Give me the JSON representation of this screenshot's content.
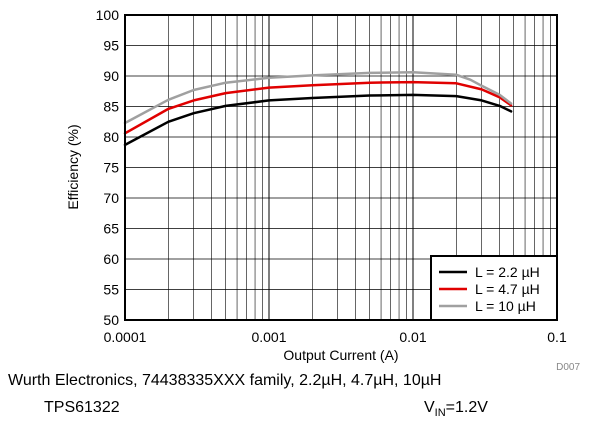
{
  "chart_data": {
    "type": "line",
    "xlabel": "Output Current (A)",
    "ylabel": "Efficiency (%)",
    "xscale": "log",
    "xlim": [
      0.0001,
      0.1
    ],
    "ylim": [
      50,
      100
    ],
    "grid": true,
    "legend_position": "bottom-right",
    "x_tick_labels": [
      "0.0001",
      "0.001",
      "0.01",
      "0.1"
    ],
    "y_tick_labels": [
      "50",
      "55",
      "60",
      "65",
      "70",
      "75",
      "80",
      "85",
      "90",
      "95",
      "100"
    ],
    "figure_id": "D007",
    "series": [
      {
        "name": "L = 2.2 µH",
        "color": "#000000",
        "x": [
          0.0001,
          0.0002,
          0.0003,
          0.0005,
          0.001,
          0.002,
          0.005,
          0.01,
          0.02,
          0.03,
          0.04,
          0.048
        ],
        "y": [
          78.7,
          82.5,
          83.9,
          85.1,
          86.0,
          86.4,
          86.8,
          86.9,
          86.7,
          86.0,
          85.1,
          84.2
        ]
      },
      {
        "name": "L = 4.7 µH",
        "color": "#e00000",
        "x": [
          0.0001,
          0.0002,
          0.0003,
          0.0005,
          0.001,
          0.002,
          0.005,
          0.01,
          0.02,
          0.03,
          0.04,
          0.048
        ],
        "y": [
          80.6,
          84.6,
          86.0,
          87.2,
          88.1,
          88.5,
          88.9,
          89.0,
          88.8,
          87.8,
          86.5,
          85.2
        ]
      },
      {
        "name": "L = 10 µH",
        "color": "#a0a0a0",
        "x": [
          0.0001,
          0.0002,
          0.0003,
          0.0005,
          0.001,
          0.002,
          0.005,
          0.01,
          0.02,
          0.025,
          0.03,
          0.04,
          0.048
        ],
        "y": [
          82.3,
          86.1,
          87.7,
          88.9,
          89.7,
          90.1,
          90.5,
          90.6,
          90.2,
          89.4,
          88.4,
          86.9,
          85.5
        ]
      }
    ]
  },
  "captions": {
    "line1": "Wurth Electronics, 74438335XXX family, 2.2µH, 4.7µH, 10µH",
    "part": "TPS61322",
    "vin_prefix": "V",
    "vin_sub": "IN",
    "vin_value": "=1.2V"
  }
}
